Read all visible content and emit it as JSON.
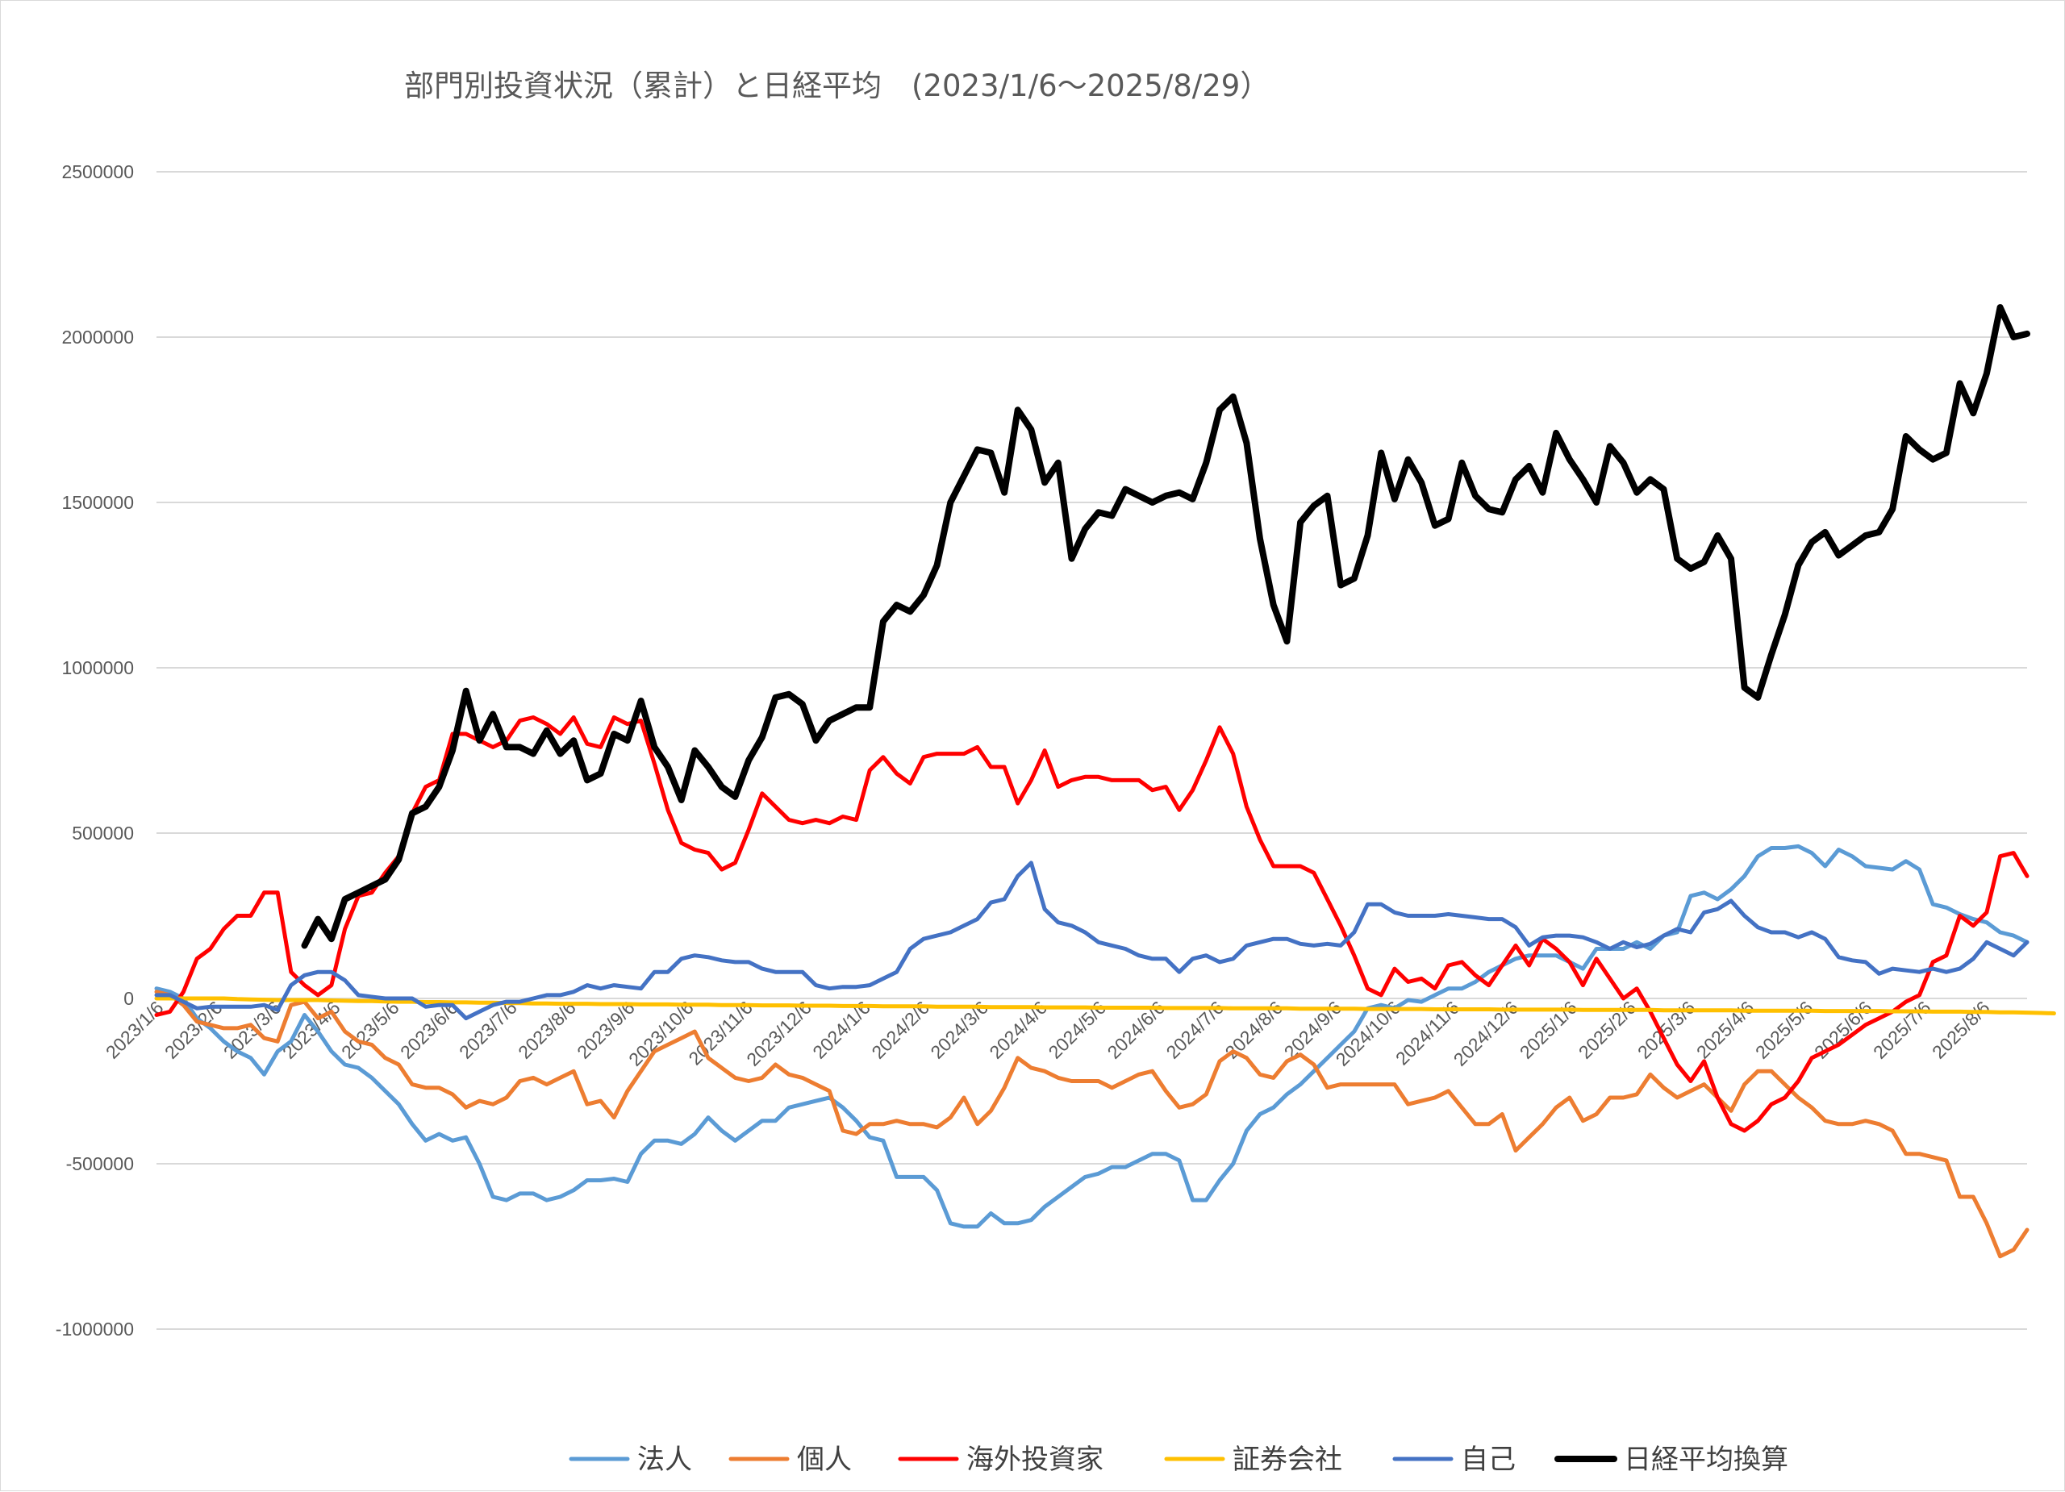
{
  "title": "部門別投資状況（累計）と日経平均　(2023/1/6～2025/8/29）",
  "chart_data": {
    "type": "line",
    "title": "部門別投資状況（累計）と日経平均　(2023/1/6～2025/8/29）",
    "xlabel": "",
    "ylabel": "",
    "ylim": [
      -1000000,
      2500000
    ],
    "yticks": [
      "2500000",
      "2000000",
      "1500000",
      "1000000",
      "500000",
      "0",
      "-500000",
      "-1000000"
    ],
    "xticks": [
      "2023/1/6",
      "2023/2/6",
      "2023/3/6",
      "2023/4/6",
      "2023/5/6",
      "2023/6/6",
      "2023/7/6",
      "2023/8/6",
      "2023/9/6",
      "2023/10/6",
      "2023/11/6",
      "2023/12/6",
      "2024/1/6",
      "2024/2/6",
      "2024/3/6",
      "2024/4/6",
      "2024/5/6",
      "2024/6/6",
      "2024/7/6",
      "2024/8/6",
      "2024/9/6",
      "2024/10/6",
      "2024/11/6",
      "2024/12/6",
      "2025/1/6",
      "2025/2/6",
      "2025/3/6",
      "2025/4/6",
      "2025/5/6",
      "2025/6/6",
      "2025/7/6",
      "2025/8/6"
    ],
    "grid": true,
    "legend_position": "bottom",
    "series": [
      {
        "name": "法人",
        "color": "#5B9BD5",
        "values": [
          30000,
          20000,
          0,
          -60000,
          -90000,
          -130000,
          -160000,
          -180000,
          -230000,
          -160000,
          -130000,
          -50000,
          -100000,
          -160000,
          -200000,
          -210000,
          -240000,
          -280000,
          -320000,
          -380000,
          -430000,
          -410000,
          -430000,
          -420000,
          -500000,
          -600000,
          -610000,
          -590000,
          -590000,
          -610000,
          -600000,
          -580000,
          -550000,
          -550000,
          -545000,
          -555000,
          -470000,
          -430000,
          -430000,
          -440000,
          -410000,
          -360000,
          -400000,
          -430000,
          -400000,
          -370000,
          -370000,
          -330000,
          -320000,
          -310000,
          -300000,
          -330000,
          -370000,
          -420000,
          -430000,
          -540000,
          -540000,
          -540000,
          -580000,
          -680000,
          -690000,
          -690000,
          -650000,
          -680000,
          -680000,
          -670000,
          -630000,
          -600000,
          -570000,
          -540000,
          -530000,
          -510000,
          -510000,
          -490000,
          -470000,
          -470000,
          -490000,
          -610000,
          -610000,
          -550000,
          -500000,
          -400000,
          -350000,
          -330000,
          -290000,
          -260000,
          -220000,
          -180000,
          -140000,
          -100000,
          -30000,
          -20000,
          -30000,
          -5000,
          -10000,
          10000,
          30000,
          30000,
          50000,
          80000,
          100000,
          120000,
          130000,
          130000,
          130000,
          110000,
          90000,
          150000,
          150000,
          150000,
          170000,
          150000,
          190000,
          200000,
          310000,
          320000,
          300000,
          330000,
          370000,
          430000,
          455000,
          455000,
          460000,
          440000,
          400000,
          450000,
          430000,
          400000,
          395000,
          390000,
          415000,
          390000,
          285000,
          275000,
          255000,
          240000,
          230000,
          200000,
          190000,
          170000
        ]
      },
      {
        "name": "個人",
        "color": "#ED7D31",
        "values": [
          20000,
          10000,
          -20000,
          -70000,
          -80000,
          -90000,
          -90000,
          -80000,
          -120000,
          -130000,
          -20000,
          -10000,
          -60000,
          -40000,
          -100000,
          -130000,
          -140000,
          -180000,
          -200000,
          -260000,
          -270000,
          -270000,
          -290000,
          -330000,
          -310000,
          -320000,
          -300000,
          -250000,
          -240000,
          -260000,
          -240000,
          -220000,
          -320000,
          -310000,
          -360000,
          -280000,
          -220000,
          -160000,
          -140000,
          -120000,
          -100000,
          -180000,
          -210000,
          -240000,
          -250000,
          -240000,
          -200000,
          -230000,
          -240000,
          -260000,
          -280000,
          -400000,
          -410000,
          -380000,
          -380000,
          -370000,
          -380000,
          -380000,
          -390000,
          -360000,
          -300000,
          -380000,
          -340000,
          -270000,
          -180000,
          -210000,
          -220000,
          -240000,
          -250000,
          -250000,
          -250000,
          -270000,
          -250000,
          -230000,
          -220000,
          -280000,
          -330000,
          -320000,
          -290000,
          -190000,
          -160000,
          -180000,
          -230000,
          -240000,
          -190000,
          -170000,
          -200000,
          -270000,
          -260000,
          -260000,
          -260000,
          -260000,
          -260000,
          -320000,
          -310000,
          -300000,
          -280000,
          -330000,
          -380000,
          -380000,
          -350000,
          -460000,
          -420000,
          -380000,
          -330000,
          -300000,
          -370000,
          -350000,
          -300000,
          -300000,
          -290000,
          -230000,
          -270000,
          -300000,
          -280000,
          -260000,
          -300000,
          -340000,
          -260000,
          -220000,
          -220000,
          -260000,
          -300000,
          -330000,
          -370000,
          -380000,
          -380000,
          -370000,
          -380000,
          -400000,
          -470000,
          -470000,
          -480000,
          -490000,
          -600000,
          -600000,
          -680000,
          -780000,
          -760000,
          -700000
        ]
      },
      {
        "name": "海外投資家",
        "color": "#FF0000",
        "values": [
          -50000,
          -40000,
          20000,
          120000,
          150000,
          210000,
          250000,
          250000,
          320000,
          320000,
          80000,
          40000,
          10000,
          40000,
          210000,
          310000,
          320000,
          380000,
          430000,
          560000,
          640000,
          660000,
          800000,
          800000,
          780000,
          760000,
          780000,
          840000,
          850000,
          830000,
          800000,
          850000,
          770000,
          760000,
          850000,
          830000,
          840000,
          710000,
          570000,
          470000,
          450000,
          440000,
          390000,
          410000,
          510000,
          620000,
          580000,
          540000,
          530000,
          540000,
          530000,
          550000,
          540000,
          690000,
          730000,
          680000,
          650000,
          730000,
          740000,
          740000,
          740000,
          760000,
          700000,
          700000,
          590000,
          660000,
          750000,
          640000,
          660000,
          670000,
          670000,
          660000,
          660000,
          660000,
          630000,
          640000,
          570000,
          630000,
          720000,
          820000,
          740000,
          580000,
          480000,
          400000,
          400000,
          400000,
          380000,
          300000,
          220000,
          130000,
          30000,
          10000,
          90000,
          50000,
          60000,
          30000,
          100000,
          110000,
          70000,
          40000,
          100000,
          160000,
          100000,
          180000,
          150000,
          110000,
          40000,
          120000,
          60000,
          0,
          30000,
          -40000,
          -120000,
          -200000,
          -250000,
          -190000,
          -300000,
          -380000,
          -400000,
          -370000,
          -320000,
          -300000,
          -250000,
          -180000,
          -160000,
          -140000,
          -110000,
          -80000,
          -60000,
          -40000,
          -10000,
          10000,
          110000,
          130000,
          250000,
          220000,
          260000,
          430000,
          440000,
          370000
        ]
      },
      {
        "name": "証券会社",
        "color": "#FFC000",
        "values": [
          0,
          0,
          0,
          0,
          0,
          0,
          -2000,
          -3000,
          -4000,
          -5000,
          -5000,
          -5000,
          -5000,
          -6000,
          -7000,
          -8000,
          -8000,
          -9000,
          -10000,
          -10000,
          -11000,
          -11000,
          -12000,
          -12000,
          -13000,
          -13000,
          -14000,
          -14000,
          -15000,
          -15000,
          -16000,
          -16000,
          -16000,
          -17000,
          -17000,
          -17000,
          -18000,
          -18000,
          -18000,
          -19000,
          -19000,
          -19000,
          -20000,
          -20000,
          -20000,
          -21000,
          -21000,
          -21000,
          -22000,
          -22000,
          -22000,
          -23000,
          -23000,
          -23000,
          -24000,
          -24000,
          -24000,
          -24000,
          -25000,
          -25000,
          -25000,
          -25000,
          -26000,
          -26000,
          -26000,
          -26000,
          -27000,
          -27000,
          -27000,
          -27000,
          -28000,
          -28000,
          -28000,
          -28000,
          -28000,
          -29000,
          -29000,
          -29000,
          -29000,
          -29000,
          -30000,
          -30000,
          -30000,
          -30000,
          -30000,
          -31000,
          -31000,
          -31000,
          -31000,
          -31000,
          -32000,
          -32000,
          -32000,
          -32000,
          -32000,
          -33000,
          -33000,
          -33000,
          -33000,
          -33000,
          -34000,
          -34000,
          -34000,
          -34000,
          -34000,
          -34000,
          -35000,
          -35000,
          -35000,
          -35000,
          -35000,
          -35000,
          -36000,
          -36000,
          -36000,
          -36000,
          -36000,
          -36000,
          -37000,
          -37000,
          -37000,
          -37000,
          -37000,
          -37000,
          -38000,
          -38000,
          -38000,
          -38000,
          -38000,
          -39000,
          -39000,
          -39000,
          -40000,
          -40000,
          -40000,
          -41000,
          -41000,
          -42000,
          -42000,
          -43000,
          -44000,
          -45000
        ]
      },
      {
        "name": "自己",
        "color": "#4472C4",
        "values": [
          10000,
          10000,
          -10000,
          -30000,
          -25000,
          -25000,
          -25000,
          -25000,
          -20000,
          -35000,
          40000,
          70000,
          80000,
          80000,
          55000,
          10000,
          5000,
          0,
          0,
          0,
          -25000,
          -20000,
          -20000,
          -60000,
          -40000,
          -20000,
          -10000,
          -10000,
          0,
          10000,
          10000,
          20000,
          40000,
          30000,
          40000,
          35000,
          30000,
          80000,
          80000,
          120000,
          130000,
          125000,
          115000,
          110000,
          110000,
          90000,
          80000,
          80000,
          80000,
          40000,
          30000,
          35000,
          35000,
          40000,
          60000,
          80000,
          150000,
          180000,
          190000,
          200000,
          220000,
          240000,
          290000,
          300000,
          370000,
          410000,
          270000,
          230000,
          220000,
          200000,
          170000,
          160000,
          150000,
          130000,
          120000,
          120000,
          80000,
          120000,
          130000,
          110000,
          120000,
          160000,
          170000,
          180000,
          180000,
          165000,
          160000,
          165000,
          160000,
          200000,
          285000,
          285000,
          260000,
          250000,
          250000,
          250000,
          255000,
          250000,
          245000,
          240000,
          240000,
          215000,
          160000,
          185000,
          190000,
          190000,
          185000,
          170000,
          150000,
          170000,
          155000,
          165000,
          190000,
          210000,
          200000,
          260000,
          270000,
          295000,
          250000,
          215000,
          200000,
          200000,
          185000,
          200000,
          180000,
          125000,
          115000,
          110000,
          75000,
          90000,
          85000,
          80000,
          90000,
          80000,
          90000,
          120000,
          170000,
          150000,
          130000,
          170000
        ]
      },
      {
        "name": "日経平均換算",
        "color": "#000000",
        "offset": 11,
        "values": [
          160000,
          240000,
          180000,
          300000,
          320000,
          340000,
          360000,
          420000,
          560000,
          580000,
          640000,
          750000,
          930000,
          780000,
          860000,
          760000,
          760000,
          740000,
          810000,
          740000,
          780000,
          660000,
          680000,
          800000,
          780000,
          900000,
          760000,
          700000,
          600000,
          750000,
          700000,
          640000,
          610000,
          720000,
          790000,
          910000,
          920000,
          890000,
          780000,
          840000,
          860000,
          880000,
          880000,
          1140000,
          1190000,
          1170000,
          1220000,
          1310000,
          1500000,
          1580000,
          1660000,
          1650000,
          1530000,
          1780000,
          1720000,
          1560000,
          1620000,
          1330000,
          1420000,
          1470000,
          1460000,
          1540000,
          1520000,
          1500000,
          1520000,
          1530000,
          1510000,
          1620000,
          1780000,
          1820000,
          1680000,
          1390000,
          1190000,
          1080000,
          1440000,
          1490000,
          1520000,
          1250000,
          1270000,
          1400000,
          1650000,
          1510000,
          1630000,
          1560000,
          1430000,
          1450000,
          1620000,
          1520000,
          1480000,
          1470000,
          1570000,
          1610000,
          1530000,
          1710000,
          1630000,
          1570000,
          1500000,
          1670000,
          1620000,
          1530000,
          1570000,
          1540000,
          1330000,
          1300000,
          1320000,
          1400000,
          1330000,
          940000,
          910000,
          1040000,
          1160000,
          1310000,
          1380000,
          1410000,
          1340000,
          1370000,
          1400000,
          1410000,
          1480000,
          1700000,
          1660000,
          1630000,
          1650000,
          1860000,
          1770000,
          1890000,
          2090000,
          2000000,
          2010000
        ]
      }
    ]
  }
}
